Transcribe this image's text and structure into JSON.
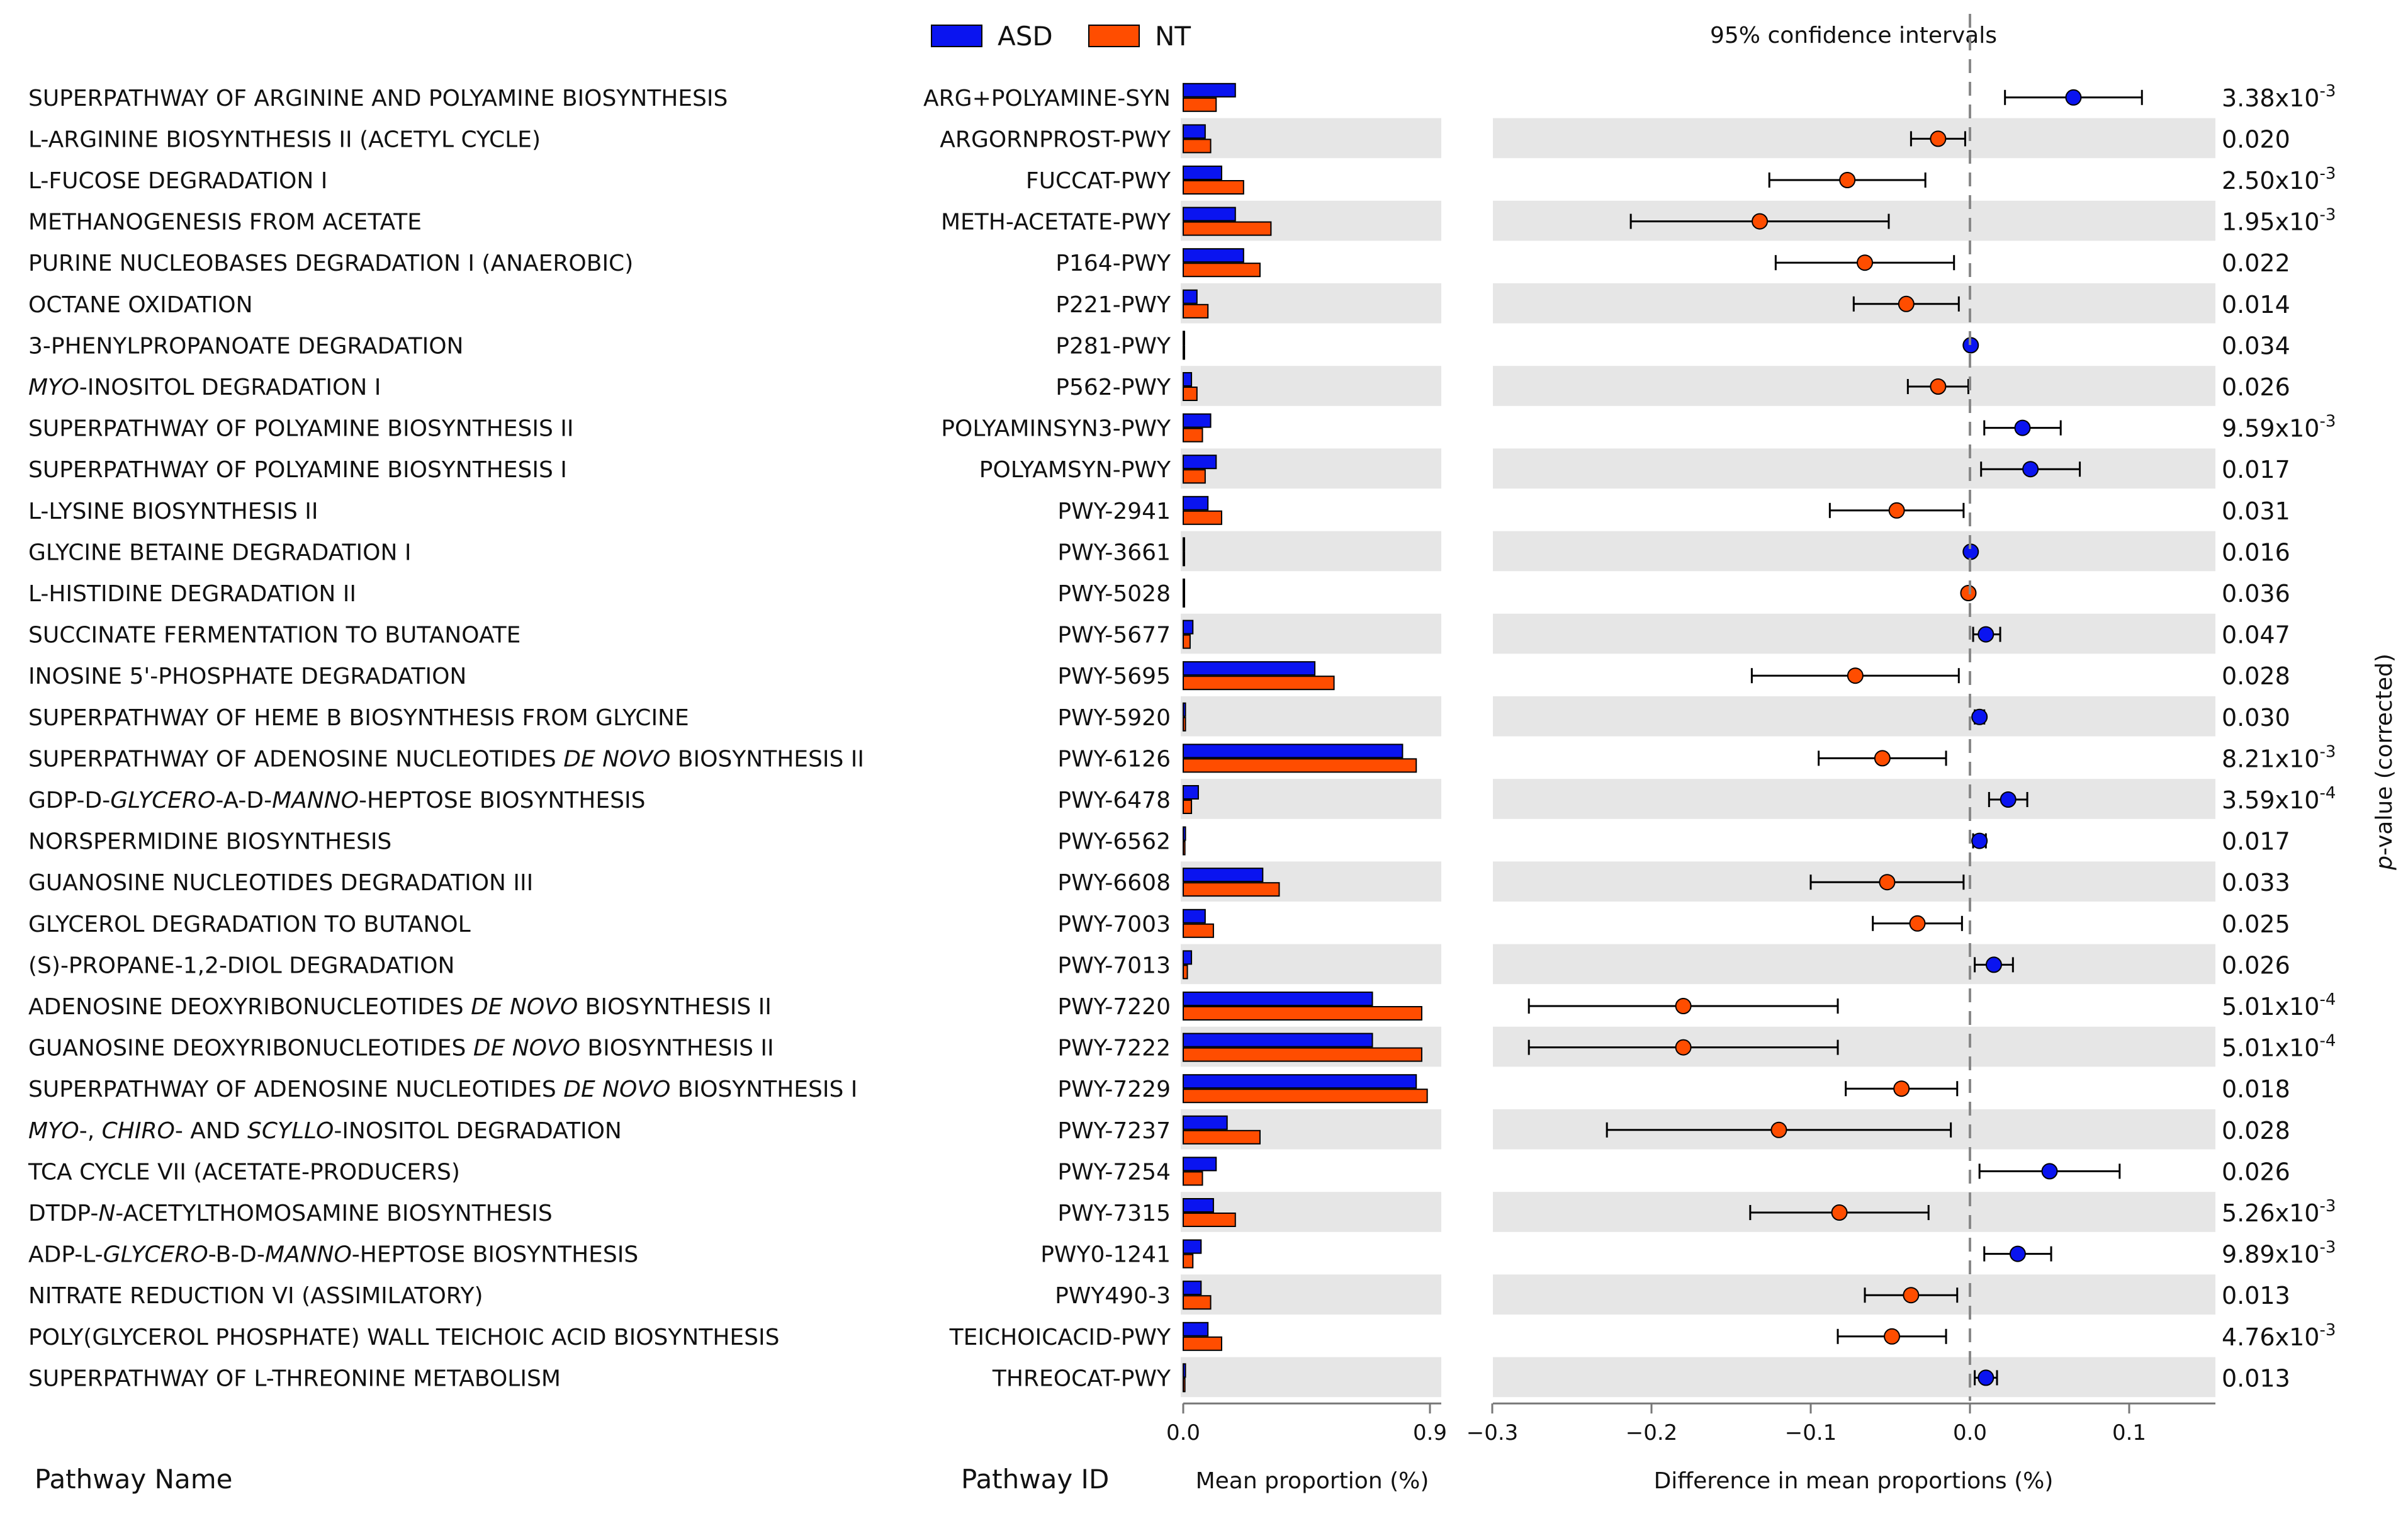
{
  "chart_data": {
    "type": "extended_error_bar",
    "legend": [
      {
        "name": "ASD",
        "color": "#0a14f0"
      },
      {
        "name": "NT",
        "color": "#ff4d00"
      }
    ],
    "ci_title": "95% confidence intervals",
    "bar_axis": {
      "label": "Mean proportion (%)",
      "ticks": [
        "0.0",
        "0.9"
      ],
      "range": [
        0,
        0.9
      ]
    },
    "diff_axis": {
      "label": "Difference in mean proportions (%)",
      "ticks": [
        "−0.3",
        "−0.2",
        "−0.1",
        "0.0",
        "0.1"
      ],
      "tick_values": [
        -0.3,
        -0.2,
        -0.1,
        0.0,
        0.1
      ],
      "range": [
        -0.3,
        0.15
      ]
    },
    "pvalue_label_prefix": "p",
    "pvalue_label": "-value (corrected)",
    "column_headers": {
      "name": "Pathway Name",
      "id": "Pathway ID"
    },
    "pathways": [
      {
        "name": "SUPERPATHWAY OF ARGININE AND POLYAMINE BIOSYNTHESIS",
        "id": "ARG+POLYAMINE-SYN",
        "asd": 0.19,
        "nt": 0.12,
        "diff": 0.065,
        "lo": 0.022,
        "hi": 0.108,
        "p_m": "3.38x10",
        "p_e": "-3"
      },
      {
        "name": "L-ARGININE BIOSYNTHESIS II (ACETYL CYCLE)",
        "id": "ARGORNPROST-PWY",
        "asd": 0.08,
        "nt": 0.1,
        "diff": -0.02,
        "lo": -0.037,
        "hi": -0.003,
        "p_m": "0.020",
        "p_e": ""
      },
      {
        "name": "L-FUCOSE DEGRADATION I",
        "id": "FUCCAT-PWY",
        "asd": 0.14,
        "nt": 0.22,
        "diff": -0.077,
        "lo": -0.126,
        "hi": -0.028,
        "p_m": "2.50x10",
        "p_e": "-3"
      },
      {
        "name": "METHANOGENESIS FROM ACETATE",
        "id": "METH-ACETATE-PWY",
        "asd": 0.19,
        "nt": 0.32,
        "diff": -0.132,
        "lo": -0.213,
        "hi": -0.051,
        "p_m": "1.95x10",
        "p_e": "-3"
      },
      {
        "name": "PURINE NUCLEOBASES DEGRADATION I (ANAEROBIC)",
        "id": "P164-PWY",
        "asd": 0.22,
        "nt": 0.28,
        "diff": -0.066,
        "lo": -0.122,
        "hi": -0.01,
        "p_m": "0.022",
        "p_e": ""
      },
      {
        "name": "OCTANE OXIDATION",
        "id": "P221-PWY",
        "asd": 0.05,
        "nt": 0.09,
        "diff": -0.04,
        "lo": -0.073,
        "hi": -0.007,
        "p_m": "0.014",
        "p_e": ""
      },
      {
        "name": "3-PHENYLPROPANOATE DEGRADATION",
        "id": "P281-PWY",
        "asd": 0.003,
        "nt": 0.003,
        "diff": 0.0005,
        "lo": 0.0005,
        "hi": 0.0005,
        "p_m": "0.034",
        "p_e": "",
        "dot": "asd"
      },
      {
        "name": "|MYO|-INOSITOL DEGRADATION I",
        "id": "P562-PWY",
        "asd": 0.03,
        "nt": 0.05,
        "diff": -0.02,
        "lo": -0.039,
        "hi": -0.001,
        "p_m": "0.026",
        "p_e": ""
      },
      {
        "name": "SUPERPATHWAY OF POLYAMINE BIOSYNTHESIS II",
        "id": "POLYAMINSYN3-PWY",
        "asd": 0.1,
        "nt": 0.07,
        "diff": 0.033,
        "lo": 0.009,
        "hi": 0.057,
        "p_m": "9.59x10",
        "p_e": "-3"
      },
      {
        "name": "SUPERPATHWAY OF POLYAMINE BIOSYNTHESIS I",
        "id": "POLYAMSYN-PWY",
        "asd": 0.12,
        "nt": 0.08,
        "diff": 0.038,
        "lo": 0.007,
        "hi": 0.069,
        "p_m": "0.017",
        "p_e": ""
      },
      {
        "name": "L-LYSINE BIOSYNTHESIS II",
        "id": "PWY-2941",
        "asd": 0.09,
        "nt": 0.14,
        "diff": -0.046,
        "lo": -0.088,
        "hi": -0.004,
        "p_m": "0.031",
        "p_e": ""
      },
      {
        "name": "GLYCINE BETAINE DEGRADATION I",
        "id": "PWY-3661",
        "asd": 0.003,
        "nt": 0.003,
        "diff": 0.0005,
        "lo": 0.0005,
        "hi": 0.0005,
        "p_m": "0.016",
        "p_e": "",
        "dot": "asd"
      },
      {
        "name": "L-HISTIDINE DEGRADATION II",
        "id": "PWY-5028",
        "asd": 0.002,
        "nt": 0.002,
        "diff": -0.001,
        "lo": -0.001,
        "hi": -0.001,
        "p_m": "0.036",
        "p_e": ""
      },
      {
        "name": "SUCCINATE FERMENTATION TO BUTANOATE",
        "id": "PWY-5677",
        "asd": 0.035,
        "nt": 0.025,
        "diff": 0.01,
        "lo": 0.002,
        "hi": 0.019,
        "p_m": "0.047",
        "p_e": ""
      },
      {
        "name": "INOSINE 5'-PHOSPHATE DEGRADATION",
        "id": "PWY-5695",
        "asd": 0.48,
        "nt": 0.55,
        "diff": -0.072,
        "lo": -0.137,
        "hi": -0.007,
        "p_m": "0.028",
        "p_e": ""
      },
      {
        "name": "SUPERPATHWAY OF HEME B BIOSYNTHESIS FROM GLYCINE",
        "id": "PWY-5920",
        "asd": 0.008,
        "nt": 0.008,
        "diff": 0.006,
        "lo": 0.003,
        "hi": 0.009,
        "p_m": "0.030",
        "p_e": ""
      },
      {
        "name": "SUPERPATHWAY OF ADENOSINE NUCLEOTIDES |DE NOVO| BIOSYNTHESIS II",
        "id": "PWY-6126",
        "asd": 0.8,
        "nt": 0.85,
        "diff": -0.055,
        "lo": -0.095,
        "hi": -0.015,
        "p_m": "8.21x10",
        "p_e": "-3"
      },
      {
        "name": "GDP-D-|GLYCERO|-A-D-|MANNO|-HEPTOSE BIOSYNTHESIS",
        "id": "PWY-6478",
        "asd": 0.055,
        "nt": 0.03,
        "diff": 0.024,
        "lo": 0.012,
        "hi": 0.036,
        "p_m": "3.59x10",
        "p_e": "-4"
      },
      {
        "name": "NORSPERMIDINE BIOSYNTHESIS",
        "id": "PWY-6562",
        "asd": 0.008,
        "nt": 0.006,
        "diff": 0.006,
        "lo": 0.002,
        "hi": 0.01,
        "p_m": "0.017",
        "p_e": ""
      },
      {
        "name": "GUANOSINE NUCLEOTIDES DEGRADATION III",
        "id": "PWY-6608",
        "asd": 0.29,
        "nt": 0.35,
        "diff": -0.052,
        "lo": -0.1,
        "hi": -0.004,
        "p_m": "0.033",
        "p_e": ""
      },
      {
        "name": "GLYCEROL DEGRADATION TO BUTANOL",
        "id": "PWY-7003",
        "asd": 0.08,
        "nt": 0.11,
        "diff": -0.033,
        "lo": -0.061,
        "hi": -0.005,
        "p_m": "0.025",
        "p_e": ""
      },
      {
        "name": "(S)-PROPANE-1,2-DIOL DEGRADATION",
        "id": "PWY-7013",
        "asd": 0.03,
        "nt": 0.015,
        "diff": 0.015,
        "lo": 0.003,
        "hi": 0.027,
        "p_m": "0.026",
        "p_e": ""
      },
      {
        "name": "ADENOSINE DEOXYRIBONUCLEOTIDES |DE NOVO| BIOSYNTHESIS II",
        "id": "PWY-7220",
        "asd": 0.69,
        "nt": 0.87,
        "diff": -0.18,
        "lo": -0.277,
        "hi": -0.083,
        "p_m": "5.01x10",
        "p_e": "-4"
      },
      {
        "name": "GUANOSINE DEOXYRIBONUCLEOTIDES |DE NOVO| BIOSYNTHESIS II",
        "id": "PWY-7222",
        "asd": 0.69,
        "nt": 0.87,
        "diff": -0.18,
        "lo": -0.277,
        "hi": -0.083,
        "p_m": "5.01x10",
        "p_e": "-4"
      },
      {
        "name": "SUPERPATHWAY OF ADENOSINE NUCLEOTIDES |DE NOVO| BIOSYNTHESIS I",
        "id": "PWY-7229",
        "asd": 0.85,
        "nt": 0.89,
        "diff": -0.043,
        "lo": -0.078,
        "hi": -0.008,
        "p_m": "0.018",
        "p_e": ""
      },
      {
        "name": "|MYO|-, |CHIRO|- AND |SCYLLO|-INOSITOL DEGRADATION",
        "id": "PWY-7237",
        "asd": 0.16,
        "nt": 0.28,
        "diff": -0.12,
        "lo": -0.228,
        "hi": -0.012,
        "p_m": "0.028",
        "p_e": ""
      },
      {
        "name": "TCA CYCLE VII (ACETATE-PRODUCERS)",
        "id": "PWY-7254",
        "asd": 0.12,
        "nt": 0.07,
        "diff": 0.05,
        "lo": 0.006,
        "hi": 0.094,
        "p_m": "0.026",
        "p_e": ""
      },
      {
        "name": "DTDP-|N|-ACETYLTHOMOSAMINE BIOSYNTHESIS",
        "id": "PWY-7315",
        "asd": 0.11,
        "nt": 0.19,
        "diff": -0.082,
        "lo": -0.138,
        "hi": -0.026,
        "p_m": "5.26x10",
        "p_e": "-3"
      },
      {
        "name": "ADP-L-|GLYCERO|-B-D-|MANNO|-HEPTOSE BIOSYNTHESIS",
        "id": "PWY0-1241",
        "asd": 0.065,
        "nt": 0.035,
        "diff": 0.03,
        "lo": 0.009,
        "hi": 0.051,
        "p_m": "9.89x10",
        "p_e": "-3"
      },
      {
        "name": "NITRATE REDUCTION VI (ASSIMILATORY)",
        "id": "PWY490-3",
        "asd": 0.065,
        "nt": 0.1,
        "diff": -0.037,
        "lo": -0.066,
        "hi": -0.008,
        "p_m": "0.013",
        "p_e": ""
      },
      {
        "name": "POLY(GLYCEROL PHOSPHATE) WALL TEICHOIC ACID BIOSYNTHESIS",
        "id": "TEICHOICACID-PWY",
        "asd": 0.09,
        "nt": 0.14,
        "diff": -0.049,
        "lo": -0.083,
        "hi": -0.015,
        "p_m": "4.76x10",
        "p_e": "-3"
      },
      {
        "name": "SUPERPATHWAY OF L-THREONINE METABOLISM",
        "id": "THREOCAT-PWY",
        "asd": 0.008,
        "nt": 0.006,
        "diff": 0.01,
        "lo": 0.003,
        "hi": 0.017,
        "p_m": "0.013",
        "p_e": ""
      }
    ]
  }
}
